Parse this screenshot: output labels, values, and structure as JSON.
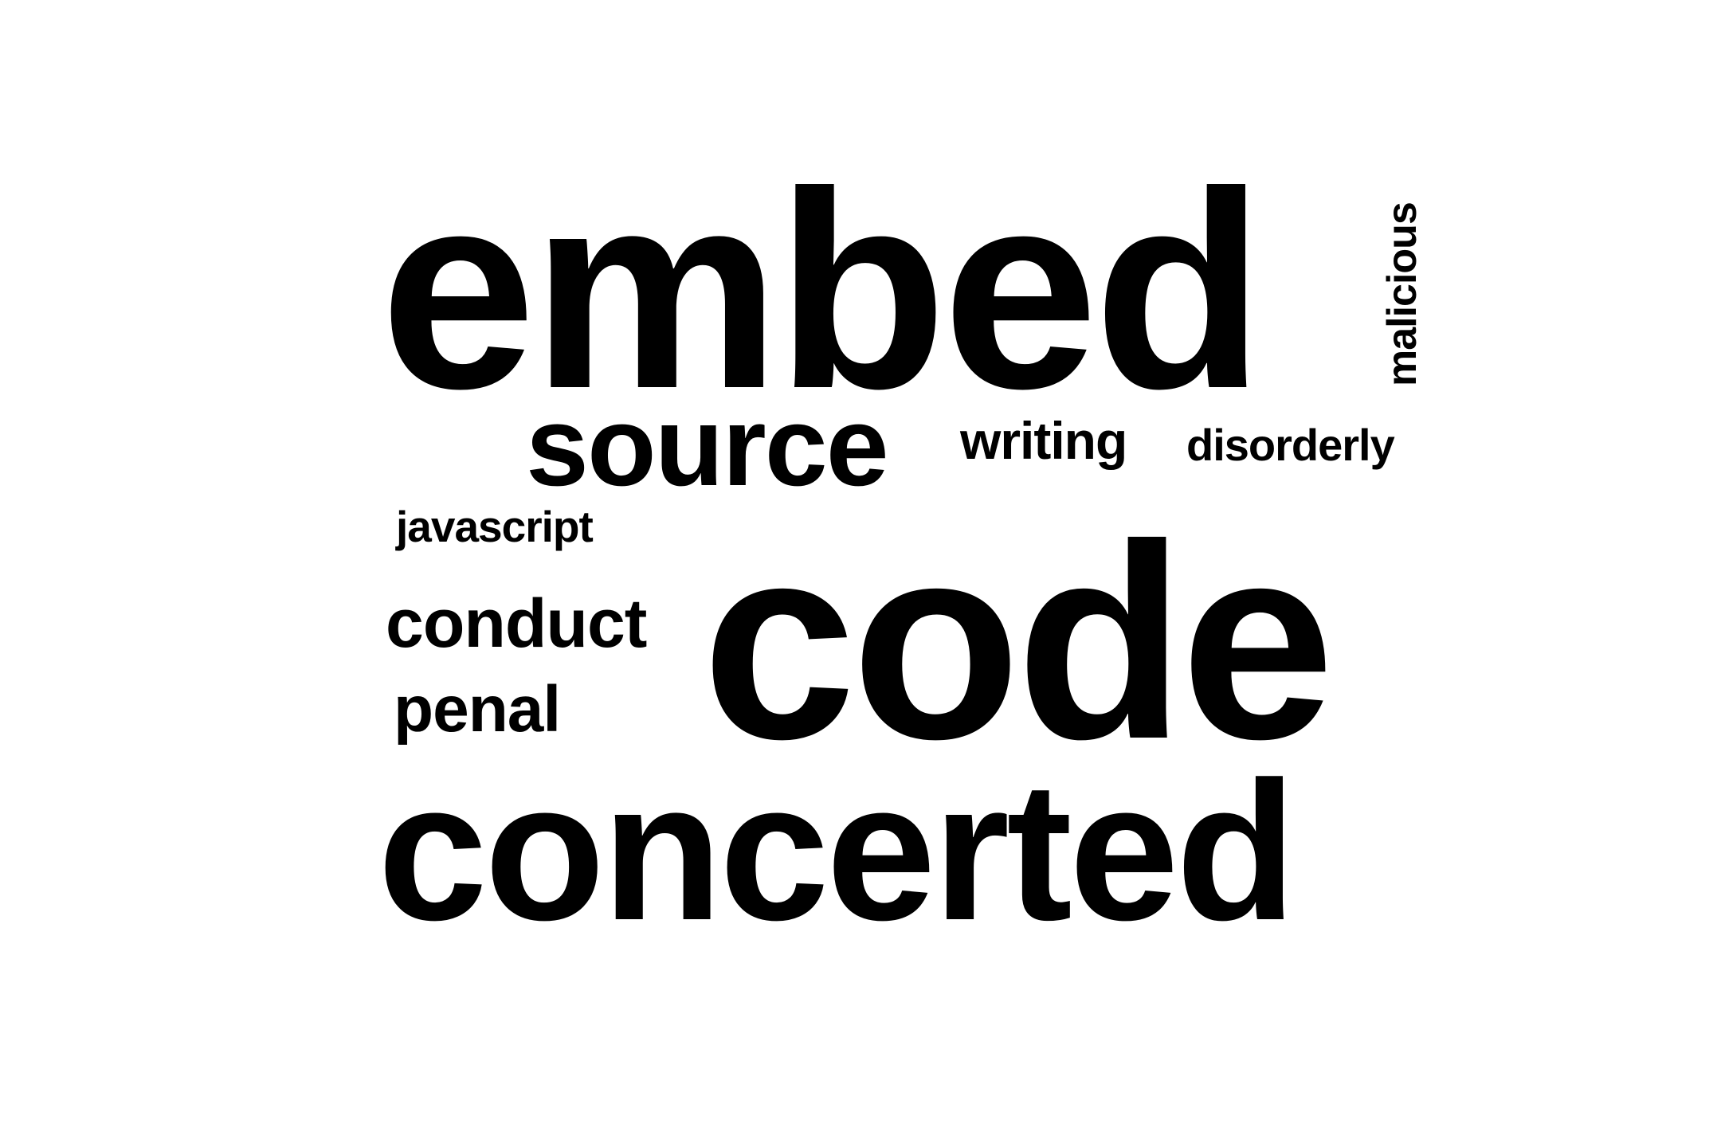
{
  "word_cloud": {
    "text_color": "#000000",
    "background_color": "#ffffff",
    "words": {
      "embed": "embed",
      "malicious": "malicious",
      "source": "source",
      "writing": "writing",
      "disorderly": "disorderly",
      "javascript": "javascript",
      "conduct": "conduct",
      "penal": "penal",
      "code": "code",
      "concerted": "concerted"
    }
  }
}
